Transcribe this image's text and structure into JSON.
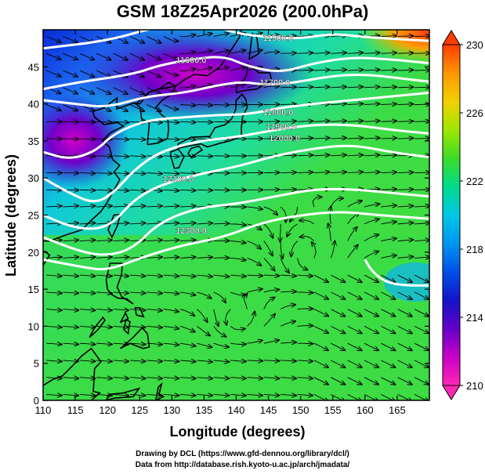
{
  "title": "GSM 18Z25Apr2026 (200.0hPa)",
  "map": {
    "xlabel": "Longitude (degrees)",
    "ylabel": "Latitude  (degrees)",
    "xlim": [
      110,
      170
    ],
    "ylim": [
      0,
      50
    ],
    "xticks": [
      110,
      115,
      120,
      125,
      130,
      135,
      140,
      145,
      150,
      155,
      160,
      165
    ],
    "yticks": [
      0,
      5,
      10,
      15,
      20,
      25,
      30,
      35,
      40,
      45
    ],
    "contour_labels": [
      {
        "text": "11500.0",
        "lon": 146.5,
        "lat": 48.5
      },
      {
        "text": "11600.0",
        "lon": 133.0,
        "lat": 45.5
      },
      {
        "text": "11700.0",
        "lon": 146.0,
        "lat": 42.5
      },
      {
        "text": "11800.0",
        "lon": 146.5,
        "lat": 38.5
      },
      {
        "text": "11900.0",
        "lon": 147.0,
        "lat": 36.5
      },
      {
        "text": "12000.0",
        "lon": 147.5,
        "lat": 35.0
      },
      {
        "text": "12100.0",
        "lon": 131.0,
        "lat": 29.5
      },
      {
        "text": "12300.0",
        "lon": 133.0,
        "lat": 22.5
      }
    ]
  },
  "colorbar": {
    "min": 210,
    "max": 230,
    "ticks": [
      "230",
      "226",
      "222",
      "218",
      "214",
      "210"
    ],
    "colors": [
      "#ff3c00",
      "#ff9600",
      "#f0d200",
      "#a0e600",
      "#3cdc28",
      "#00dc8c",
      "#00c8e6",
      "#0096f0",
      "#0050e6",
      "#1414c8",
      "#6400c8",
      "#c800c8",
      "#ff28b4"
    ]
  },
  "credits": [
    "Drawing by DCL (https://www.gfd-dennou.org/library/dcl/)",
    "Data from http://database.rish.kyoto-u.ac.jp/arch/jmadata/"
  ]
}
